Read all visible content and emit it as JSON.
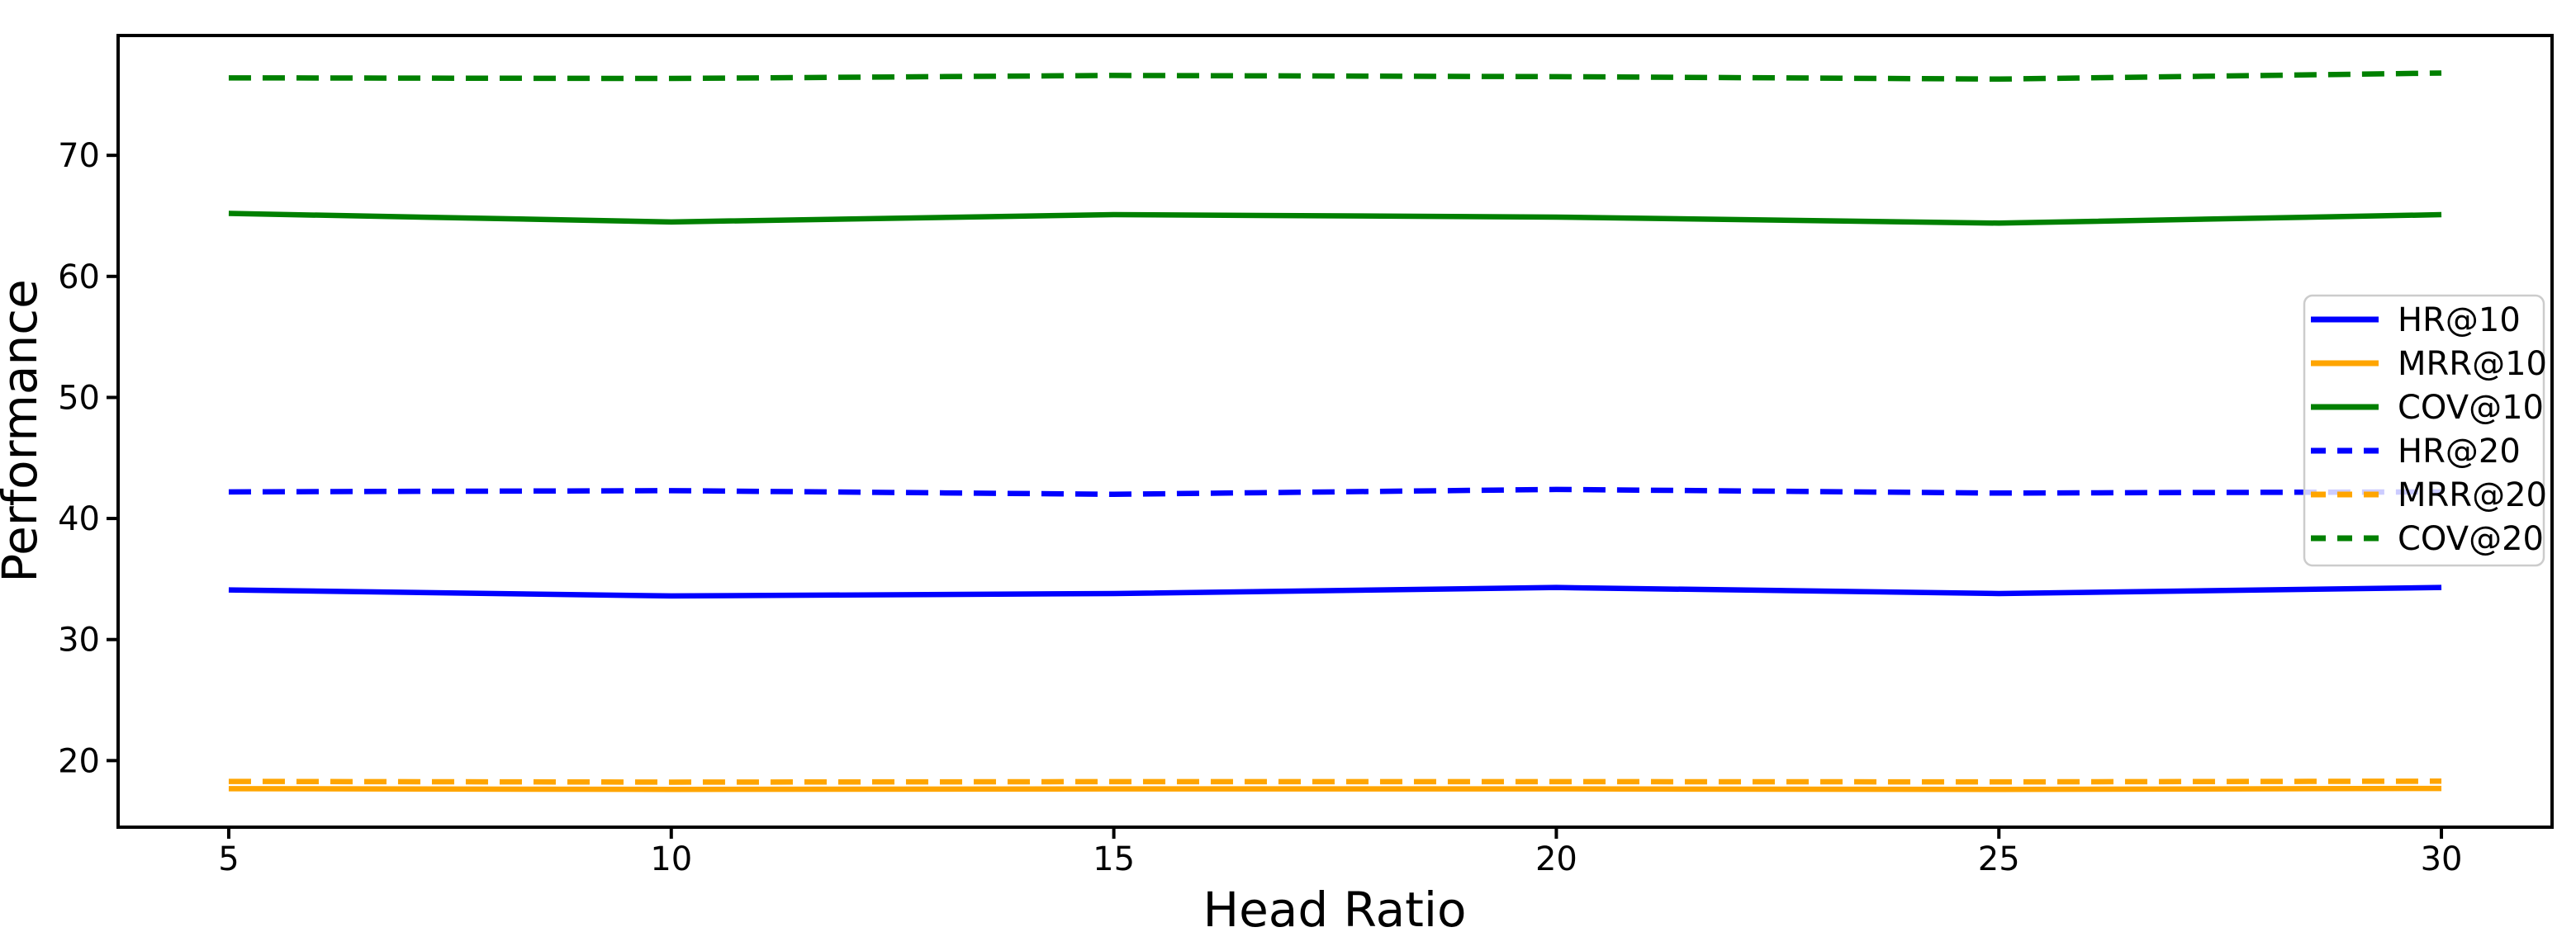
{
  "figure": {
    "background": "#ffffff"
  },
  "chart_data": {
    "type": "line",
    "title": "",
    "xlabel": "Head Ratio",
    "ylabel": "Performance",
    "x": [
      5,
      10,
      15,
      20,
      25,
      30
    ],
    "series": [
      {
        "name": "HR@10",
        "color": "#0000ff",
        "style": "solid",
        "values": [
          34.1,
          33.6,
          33.8,
          34.3,
          33.8,
          34.3
        ]
      },
      {
        "name": "MRR@10",
        "color": "#ffa500",
        "style": "solid",
        "values": [
          17.68,
          17.62,
          17.66,
          17.66,
          17.62,
          17.7
        ]
      },
      {
        "name": "COV@10",
        "color": "#008000",
        "style": "solid",
        "values": [
          65.2,
          64.5,
          65.1,
          64.9,
          64.4,
          65.1
        ]
      },
      {
        "name": "HR@20",
        "color": "#0000ff",
        "style": "dashed",
        "values": [
          42.2,
          42.3,
          42.0,
          42.4,
          42.1,
          42.2
        ]
      },
      {
        "name": "MRR@20",
        "color": "#ffa500",
        "style": "dashed",
        "values": [
          18.28,
          18.22,
          18.26,
          18.26,
          18.24,
          18.3
        ]
      },
      {
        "name": "COV@20",
        "color": "#008000",
        "style": "dashed",
        "values": [
          76.4,
          76.35,
          76.6,
          76.5,
          76.3,
          76.8
        ]
      }
    ],
    "xticks": [
      5,
      10,
      15,
      20,
      25,
      30
    ],
    "yticks": [
      20,
      30,
      40,
      50,
      60,
      70
    ],
    "xlim": [
      3.75,
      31.25
    ],
    "ylim": [
      14.5,
      79.9
    ],
    "grid": false,
    "legend_position": "center-right",
    "legend_entries": [
      "HR@10",
      "MRR@10",
      "COV@10",
      "HR@20",
      "MRR@20",
      "COV@20"
    ],
    "axis_color": "#000000",
    "legend_border_color": "#cccccc",
    "legend_background": "rgba(255,255,255,0.8)"
  }
}
